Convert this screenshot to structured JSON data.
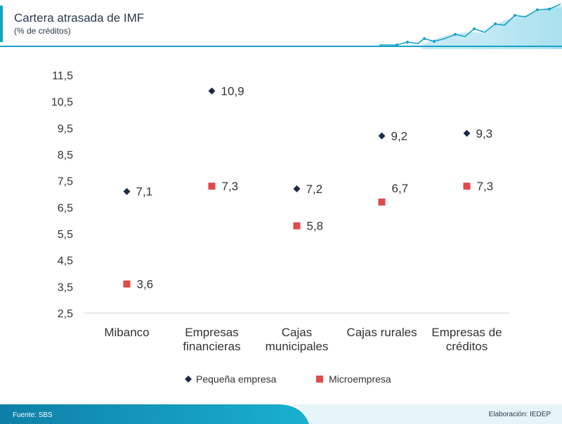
{
  "header": {
    "title": "Cartera atrasada de IMF",
    "subtitle": "(% de créditos)"
  },
  "footer": {
    "source": "Fuente: SBS",
    "credit": "Elaboración: IEDEP"
  },
  "colors": {
    "pequena": "#1c2a4a",
    "micro": "#e04a4a",
    "teal": "#17a3c7",
    "dark_teal": "#0e7fa8"
  },
  "chart_data": {
    "type": "scatter",
    "title": "Cartera atrasada de IMF",
    "subtitle": "(% de créditos)",
    "categories": [
      [
        "Mibanco"
      ],
      [
        "Empresas",
        "financieras"
      ],
      [
        "Cajas",
        "municipales"
      ],
      [
        "Cajas rurales"
      ],
      [
        "Empresas de",
        "créditos"
      ]
    ],
    "ylim": [
      2.5,
      11.5
    ],
    "yticks": [
      "2,5",
      "3,5",
      "4,5",
      "5,5",
      "6,5",
      "7,5",
      "8,5",
      "9,5",
      "10,5",
      "11,5"
    ],
    "legend_position": "bottom",
    "series": [
      {
        "name": "Pequeña empresa",
        "marker": "diamond",
        "values": [
          7.1,
          10.9,
          7.2,
          9.2,
          9.3
        ],
        "labels": [
          "7,1",
          "10,9",
          "7,2",
          "9,2",
          "9,3"
        ]
      },
      {
        "name": "Microempresa",
        "marker": "square",
        "values": [
          3.6,
          7.3,
          5.8,
          6.7,
          7.3
        ],
        "labels": [
          "3,6",
          "7,3",
          "5,8",
          "6,7",
          "7,3"
        ]
      }
    ]
  }
}
